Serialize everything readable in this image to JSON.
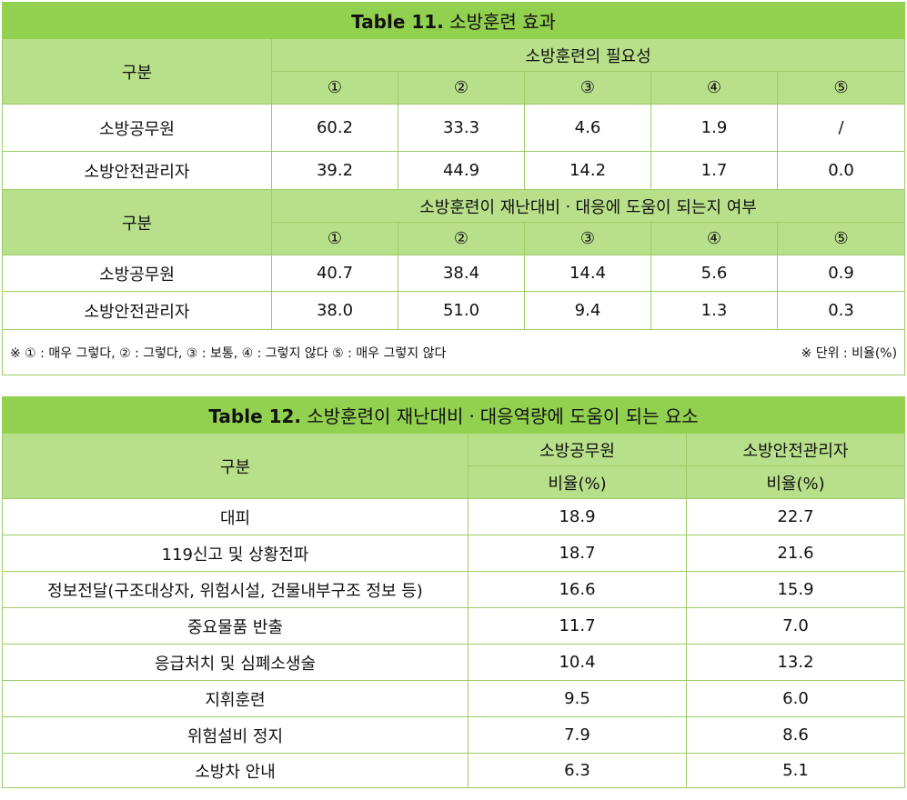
{
  "table11": {
    "caption_prefix": "Table 11.",
    "caption_title": "소방훈련 효과",
    "group_label": "구분",
    "section1_title": "소방훈련의 필요성",
    "section2_title": "소방훈련이 재난대비ㆍ대응에 도움이 되는지 여부",
    "scale": [
      "①",
      "②",
      "③",
      "④",
      "⑤"
    ],
    "section1_rows": [
      {
        "label": "소방공무원",
        "values": [
          "60.2",
          "33.3",
          "4.6",
          "1.9",
          "/"
        ]
      },
      {
        "label": "소방안전관리자",
        "values": [
          "39.2",
          "44.9",
          "14.2",
          "1.7",
          "0.0"
        ]
      }
    ],
    "section2_rows": [
      {
        "label": "소방공무원",
        "values": [
          "40.7",
          "38.4",
          "14.4",
          "5.6",
          "0.9"
        ]
      },
      {
        "label": "소방안전관리자",
        "values": [
          "38.0",
          "51.0",
          "9.4",
          "1.3",
          "0.3"
        ]
      }
    ],
    "note_left": "※ ① : 매우 그렇다, ② : 그렇다, ③ : 보통,    ④ : 그렇지 않다 ⑤ : 매우 그렇지 않다",
    "note_right": "※ 단위 : 비율(%)"
  },
  "table12": {
    "caption_prefix": "Table 12.",
    "caption_title": "소방훈련이 재난대비ㆍ대응역량에 도움이 되는 요소",
    "group_label": "구분",
    "col1_title": "소방공무원",
    "col2_title": "소방안전관리자",
    "col1_unit": "비율(%)",
    "col2_unit": "비율(%)",
    "rows": [
      {
        "label": "대피",
        "a": "18.9",
        "b": "22.7"
      },
      {
        "label": "119신고 및 상황전파",
        "a": "18.7",
        "b": "21.6"
      },
      {
        "label": "정보전달(구조대상자, 위험시설, 건물내부구조 정보 등)",
        "a": "16.6",
        "b": "15.9"
      },
      {
        "label": "중요물품 반출",
        "a": "11.7",
        "b": "7.0"
      },
      {
        "label": "응급처치 및 심폐소생술",
        "a": "10.4",
        "b": "13.2"
      },
      {
        "label": "지휘훈련",
        "a": "9.5",
        "b": "6.0"
      },
      {
        "label": "위험설비 정지",
        "a": "7.9",
        "b": "8.6"
      },
      {
        "label": "소방차 안내",
        "a": "6.3",
        "b": "5.1"
      }
    ]
  }
}
